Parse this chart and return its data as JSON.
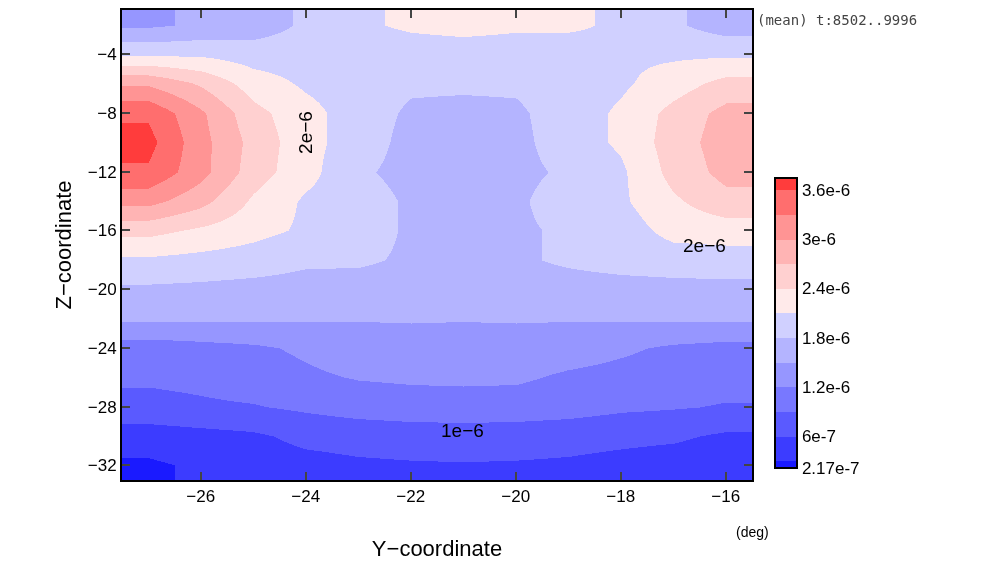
{
  "chart_data": {
    "type": "heatmap",
    "xlabel": "Y−coordinate",
    "ylabel": "Z−coordinate",
    "categories": [
      null,
      "−26",
      null,
      "−24",
      null,
      "−22",
      null,
      "−20",
      null,
      "−18",
      null,
      "−16"
    ],
    "y_categories": [
      null,
      "−4",
      null,
      "−8",
      null,
      "−12",
      null,
      "−16",
      null,
      "−20",
      null,
      "−24",
      null,
      "−28",
      null,
      "−32"
    ],
    "cells": [
      [
        1.45e-06,
        1.55e-06,
        1.65e-06,
        1.85e-06,
        2.05e-06,
        2.15e-06,
        2.2e-06,
        2.15e-06,
        2.15e-06,
        2.05e-06,
        1.85e-06,
        1.65e-06
      ],
      [
        2.05e-06,
        2.05e-06,
        1.95e-06,
        1.95e-06,
        1.95e-06,
        1.95e-06,
        1.95e-06,
        1.95e-06,
        1.95e-06,
        2.05e-06,
        2.05e-06,
        2.05e-06
      ],
      [
        2.95e-06,
        2.65e-06,
        2.25e-06,
        2.05e-06,
        1.95e-06,
        1.85e-06,
        1.85e-06,
        1.85e-06,
        1.95e-06,
        2.05e-06,
        2.25e-06,
        2.5e-06
      ],
      [
        3.55e-06,
        3.05e-06,
        2.5e-06,
        2.2e-06,
        1.95e-06,
        1.75e-06,
        1.72e-06,
        1.75e-06,
        1.95e-06,
        2.15e-06,
        2.5e-06,
        2.8e-06
      ],
      [
        3.7e-06,
        3.1e-06,
        2.6e-06,
        2.2e-06,
        1.95e-06,
        1.7e-06,
        1.7e-06,
        1.72e-06,
        1.95e-06,
        2.15e-06,
        2.55e-06,
        2.85e-06
      ],
      [
        3.55e-06,
        3.1e-06,
        2.55e-06,
        2.2e-06,
        1.85e-06,
        1.7e-06,
        1.7e-06,
        1.72e-06,
        1.85e-06,
        2.05e-06,
        2.5e-06,
        2.8e-06
      ],
      [
        3.1e-06,
        2.8e-06,
        2.35e-06,
        2.05e-06,
        1.95e-06,
        1.75e-06,
        1.7e-06,
        1.75e-06,
        1.95e-06,
        2.05e-06,
        2.35e-06,
        2.6e-06
      ],
      [
        2.5e-06,
        2.35e-06,
        2.2e-06,
        2.05e-06,
        1.95e-06,
        1.75e-06,
        1.75e-06,
        1.75e-06,
        1.85e-06,
        1.95e-06,
        2.2e-06,
        2.25e-06
      ],
      [
        2.05e-06,
        2e-06,
        1.95e-06,
        1.85e-06,
        1.85e-06,
        1.75e-06,
        1.75e-06,
        1.75e-06,
        1.85e-06,
        1.92e-06,
        1.95e-06,
        1.95e-06
      ],
      [
        1.75e-06,
        1.73e-06,
        1.7e-06,
        1.68e-06,
        1.66e-06,
        1.65e-06,
        1.65e-06,
        1.65e-06,
        1.66e-06,
        1.68e-06,
        1.7e-06,
        1.72e-06
      ],
      [
        1.55e-06,
        1.55e-06,
        1.55e-06,
        1.53e-06,
        1.52e-06,
        1.52e-06,
        1.51e-06,
        1.52e-06,
        1.52e-06,
        1.53e-06,
        1.55e-06,
        1.55e-06
      ],
      [
        1.05e-06,
        1.1e-06,
        1.15e-06,
        1.25e-06,
        1.35e-06,
        1.4e-06,
        1.42e-06,
        1.4e-06,
        1.35e-06,
        1.25e-06,
        1.15e-06,
        1.1e-06
      ],
      [
        9.5e-07,
        9.8e-07,
        1.05e-06,
        1.15e-06,
        1.22e-06,
        1.25e-06,
        1.26e-06,
        1.25e-06,
        1.15e-06,
        1.1e-06,
        1.05e-06,
        1e-06
      ],
      [
        8e-07,
        8.5e-07,
        8.8e-07,
        9.5e-07,
        1.02e-06,
        1.05e-06,
        1.06e-06,
        1.05e-06,
        1.02e-06,
        9.5e-07,
        9.2e-07,
        8.8e-07
      ],
      [
        4.5e-07,
        5e-07,
        5.5e-07,
        6.8e-07,
        7.2e-07,
        7.5e-07,
        7.6e-07,
        7.5e-07,
        7.2e-07,
        6.8e-07,
        6.5e-07,
        5.5e-07
      ],
      [
        2.5e-07,
        3.5e-07,
        4.5e-07,
        5e-07,
        5.5e-07,
        5.7e-07,
        5.8e-07,
        5.7e-07,
        5.5e-07,
        5e-07,
        4.5e-07,
        4e-07
      ]
    ],
    "colors": [
      "#1a1aff",
      "#3c3cff",
      "#5a5aff",
      "#7878ff",
      "#9696ff",
      "#b4b4ff",
      "#d0d0ff",
      "#ffeaea",
      "#ffd0d0",
      "#ffb4b4",
      "#ff9494",
      "#ff6e6e",
      "#ff3c3c"
    ],
    "clim": [
      2.17e-07,
      3.75e-06
    ],
    "cticks": [
      {
        "value": 2.17e-07,
        "label": "2.17e-7"
      },
      {
        "value": 6e-07,
        "label": "6e-7"
      },
      {
        "value": 1.2e-06,
        "label": "1.2e-6"
      },
      {
        "value": 1.8e-06,
        "label": "1.8e-6"
      },
      {
        "value": 2.4e-06,
        "label": "2.4e-6"
      },
      {
        "value": 3e-06,
        "label": "3e-6"
      },
      {
        "value": 3.6e-06,
        "label": "3.6e-6"
      }
    ],
    "annotations": [
      "(mean) t:8502..9996",
      "(deg)",
      "2e−6",
      "2e−6",
      "1e−6"
    ]
  }
}
